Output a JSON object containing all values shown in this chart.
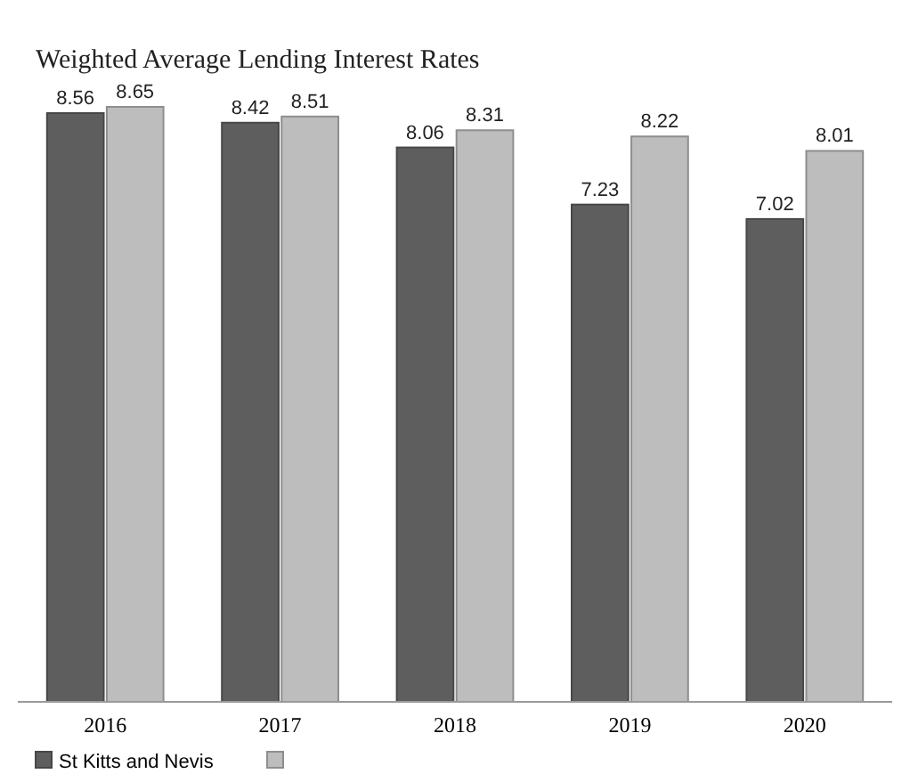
{
  "chart_data": {
    "type": "bar",
    "title": "Weighted Average Lending Interest Rates",
    "categories": [
      "2016",
      "2017",
      "2018",
      "2019",
      "2020"
    ],
    "series": [
      {
        "name": "St Kitts and Nevis",
        "color": "#5e5e5e",
        "values": [
          8.56,
          8.42,
          8.06,
          7.23,
          7.02
        ]
      },
      {
        "color": "#bdbdbd",
        "values": [
          8.65,
          8.51,
          8.31,
          8.22,
          8.01
        ]
      }
    ],
    "tick_labels": "x",
    "data_labels": true,
    "legend": "bottom"
  }
}
